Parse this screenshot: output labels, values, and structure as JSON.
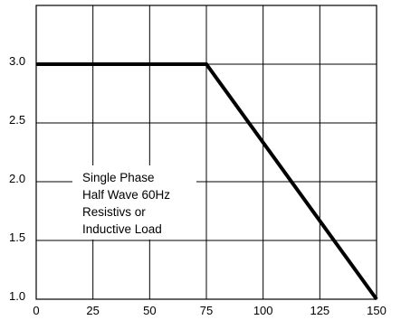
{
  "chart_data": {
    "type": "line",
    "title": "",
    "xlabel": "",
    "ylabel": "",
    "xlim": [
      0,
      150
    ],
    "ylim": [
      1.0,
      3.5
    ],
    "grid": true,
    "x_ticks": [
      "0",
      "25",
      "50",
      "75",
      "100",
      "125",
      "150"
    ],
    "y_ticks": [
      "1.0",
      "1.5",
      "2.0",
      "2.5",
      "3.0"
    ],
    "series": [
      {
        "x": [
          0,
          75,
          150
        ],
        "values": [
          3.0,
          3.0,
          1.0
        ]
      }
    ],
    "annotation": [
      "Single Phase",
      "Half Wave 60Hz",
      "Resistivs or",
      "Inductive Load"
    ],
    "colors": {
      "line": "#000000",
      "grid": "#000000",
      "background": "#ffffff"
    }
  }
}
